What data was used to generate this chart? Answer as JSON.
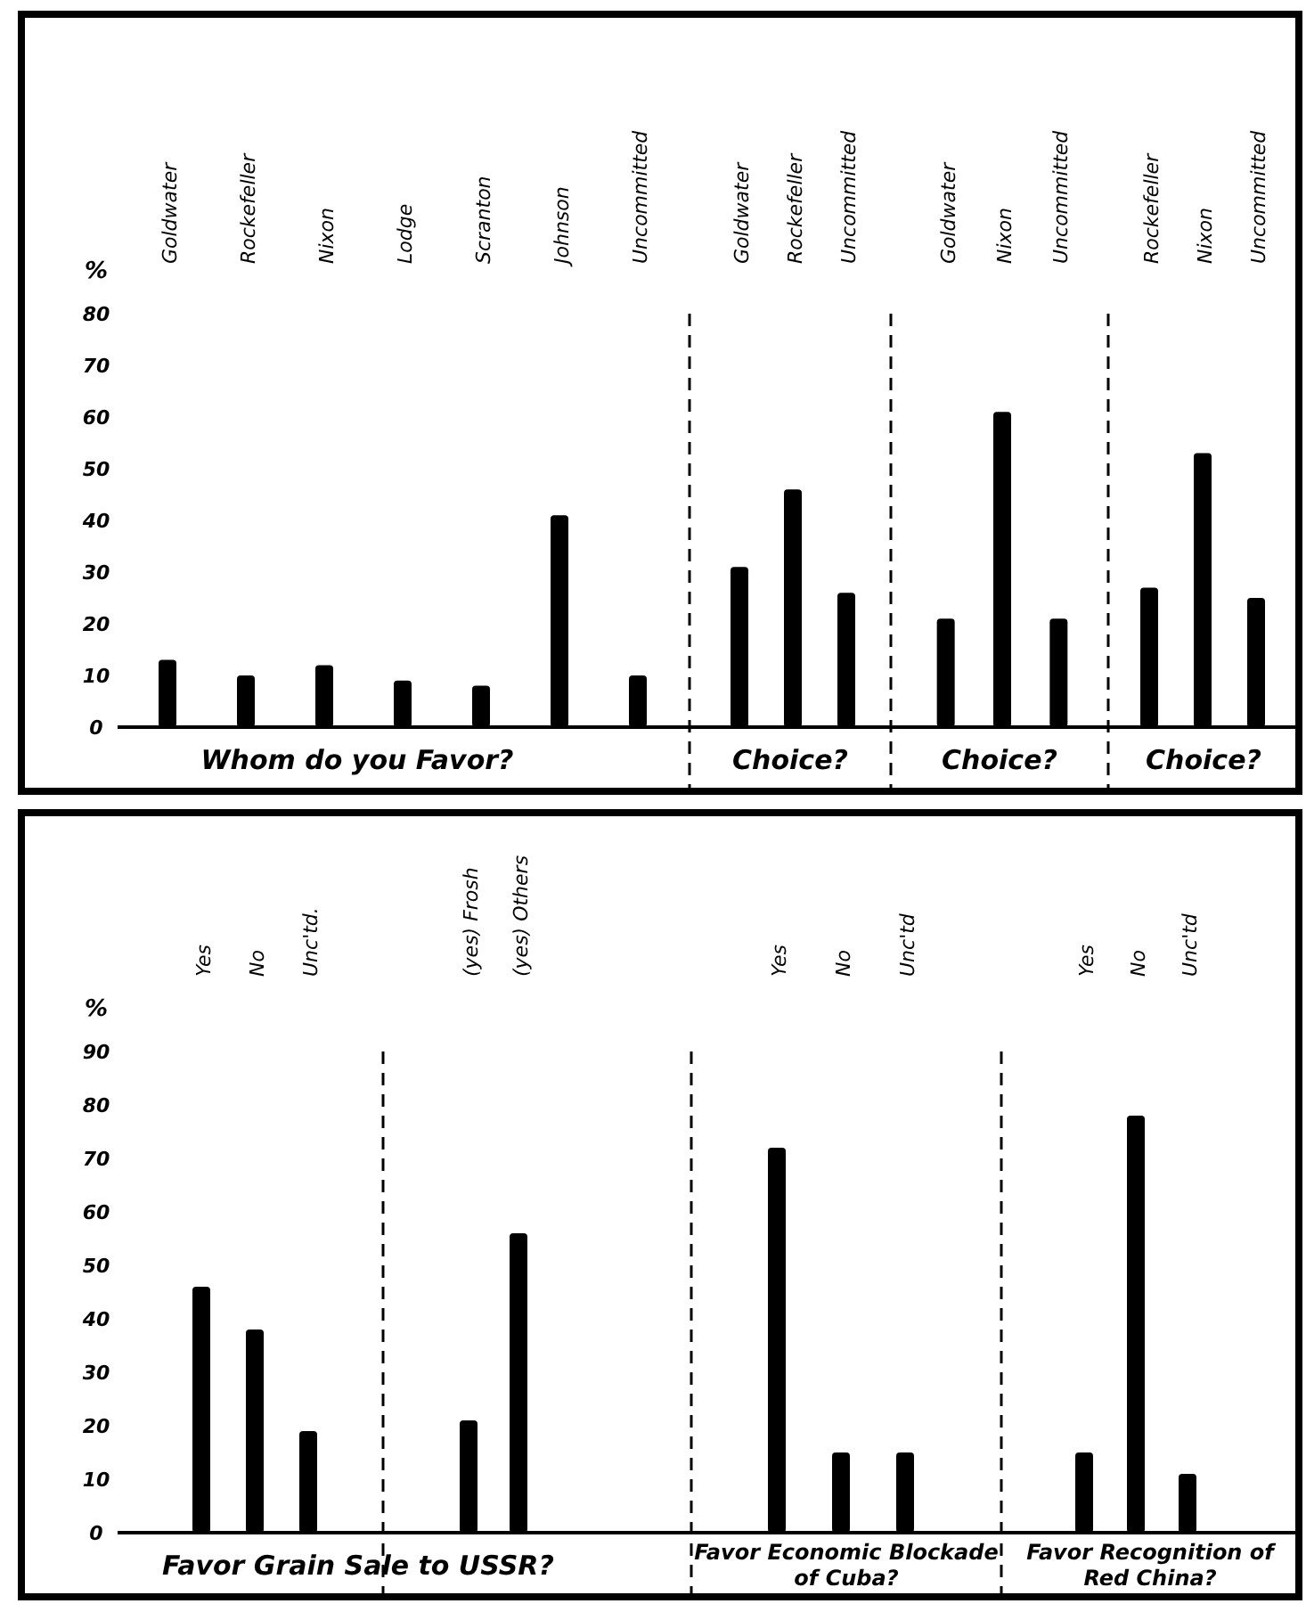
{
  "chart_data": [
    {
      "type": "bar",
      "title": "Whom do you Favor?",
      "ylabel": "%",
      "categories": [
        "Goldwater",
        "Rockefeller",
        "Nixon",
        "Lodge",
        "Scranton",
        "Johnson",
        "Uncommitted"
      ],
      "values": [
        13,
        10,
        12,
        9,
        8,
        41,
        10
      ],
      "color": "#000000",
      "ylim": [
        0,
        80
      ],
      "yticks": [
        0,
        10,
        20,
        30,
        40,
        50,
        60,
        70,
        80
      ]
    },
    {
      "type": "bar",
      "title": "Choice?",
      "categories": [
        "Goldwater",
        "Rockefeller",
        "Uncommitted"
      ],
      "values": [
        31,
        46,
        26
      ],
      "color": "#000000",
      "ylim": [
        0,
        80
      ],
      "tick_labels": "x"
    },
    {
      "type": "bar",
      "title": "Choice?",
      "categories": [
        "Goldwater",
        "Nixon",
        "Uncommitted"
      ],
      "values": [
        21,
        61,
        21
      ],
      "color": "#000000",
      "ylim": [
        0,
        80
      ],
      "tick_labels": "x"
    },
    {
      "type": "bar",
      "title": "Choice?",
      "categories": [
        "Rockefeller",
        "Nixon",
        "Uncommitted"
      ],
      "values": [
        27,
        53,
        25
      ],
      "color": "#000000",
      "ylim": [
        0,
        80
      ],
      "tick_labels": "x"
    },
    {
      "type": "bar",
      "title": "Favor Grain Sale to USSR?",
      "ylabel": "%",
      "categories": [
        "Yes",
        "No",
        "Unc'td."
      ],
      "values": [
        46,
        38,
        19
      ],
      "color": "#000000",
      "ylim": [
        0,
        90
      ],
      "yticks": [
        0,
        10,
        20,
        30,
        40,
        50,
        60,
        70,
        80,
        90
      ]
    },
    {
      "type": "bar",
      "categories": [
        "(yes) Frosh",
        "(yes) Others"
      ],
      "values": [
        21,
        56
      ],
      "color": "#000000",
      "ylim": [
        0,
        90
      ],
      "tick_labels": "x"
    },
    {
      "type": "bar",
      "title": "Favor Economic Blockade of Cuba?",
      "categories": [
        "Yes",
        "No",
        "Unc'td"
      ],
      "values": [
        72,
        15,
        15
      ],
      "color": "#000000",
      "ylim": [
        0,
        90
      ],
      "tick_labels": "x"
    },
    {
      "type": "bar",
      "title": "Favor Recognition of Red China?",
      "categories": [
        "Yes",
        "No",
        "Unc'td"
      ],
      "values": [
        15,
        78,
        11
      ],
      "color": "#000000",
      "ylim": [
        0,
        90
      ],
      "tick_labels": "x"
    }
  ]
}
